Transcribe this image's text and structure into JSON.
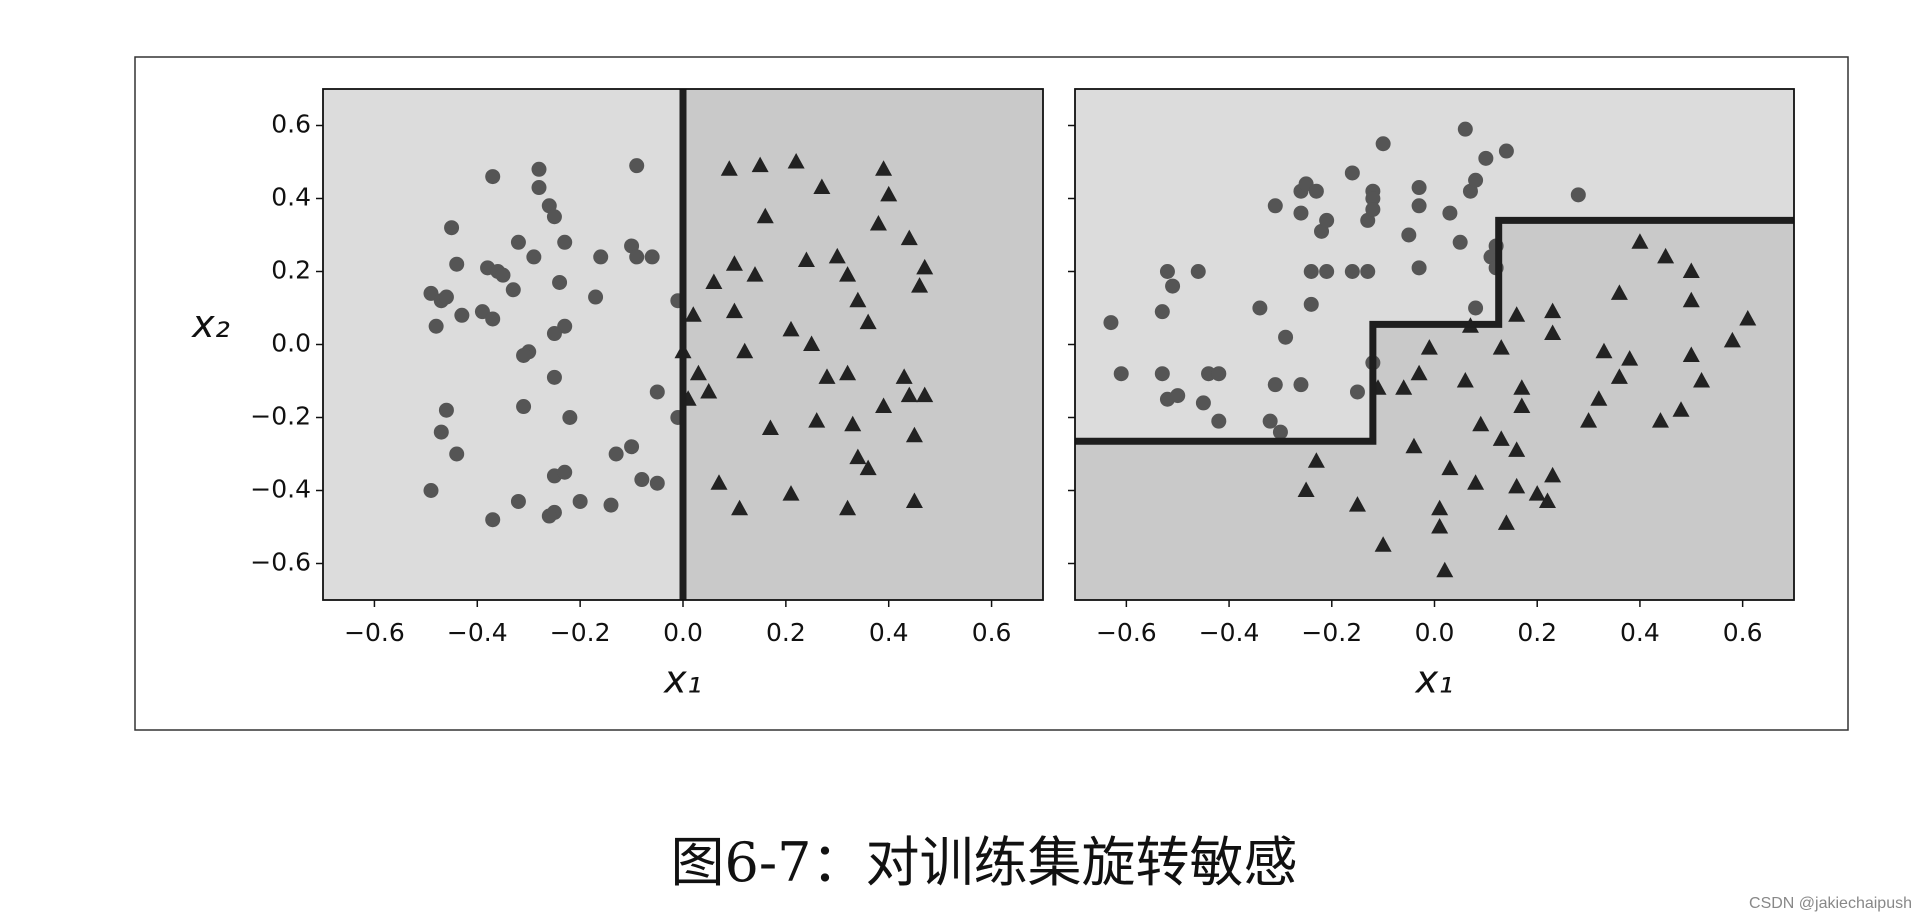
{
  "chart_data": [
    {
      "type": "scatter",
      "xlabel": "x₁",
      "ylabel": "x₂",
      "xlim": [
        -0.7,
        0.7
      ],
      "ylim": [
        -0.7,
        0.7
      ],
      "xticks": [
        {
          "value": -0.6,
          "label": "−0.6"
        },
        {
          "value": -0.4,
          "label": "−0.4"
        },
        {
          "value": -0.2,
          "label": "−0.2"
        },
        {
          "value": 0,
          "label": "0.0"
        },
        0.2,
        0.4,
        0.6
      ],
      "yticks": [
        {
          "value": -0.6,
          "label": "−0.6"
        },
        {
          "value": -0.4,
          "label": "−0.4"
        },
        {
          "value": -0.2,
          "label": "−0.2"
        },
        {
          "value": 0,
          "label": "0.0"
        },
        0.2,
        0.4,
        0.6
      ],
      "ytick_labels": true,
      "region_colors": [
        "#dcdcdc",
        "#c9c9c9"
      ],
      "dark_side": "right",
      "boundary": {
        "color": "#1e1e1e",
        "x": [
          0,
          0
        ],
        "y": [
          -0.7,
          0.7
        ]
      },
      "circles": {
        "marker": "circle",
        "color": "#555555",
        "x": [
          -0.49,
          -0.48,
          -0.47,
          -0.45,
          -0.44,
          -0.43,
          -0.46,
          -0.39,
          -0.38,
          -0.37,
          -0.37,
          -0.36,
          -0.35,
          -0.33,
          -0.32,
          -0.29,
          -0.28,
          -0.28,
          -0.26,
          -0.25,
          -0.24,
          -0.23,
          -0.23,
          -0.25,
          -0.3,
          -0.31,
          -0.25,
          -0.31,
          -0.22,
          -0.17,
          -0.16,
          -0.09,
          -0.1,
          -0.09,
          -0.06,
          -0.01,
          -0.05,
          -0.01,
          -0.46,
          -0.47,
          -0.44,
          -0.49,
          -0.37,
          -0.32,
          -0.25,
          -0.23,
          -0.25,
          -0.26,
          -0.2,
          -0.14,
          -0.13,
          -0.1,
          -0.08,
          -0.05
        ],
        "y": [
          0.14,
          0.05,
          0.12,
          0.32,
          0.22,
          0.08,
          0.13,
          0.09,
          0.21,
          0.46,
          0.07,
          0.2,
          0.19,
          0.15,
          0.28,
          0.24,
          0.43,
          0.48,
          0.38,
          0.35,
          0.17,
          0.28,
          0.05,
          0.03,
          -0.02,
          -0.03,
          -0.09,
          -0.17,
          -0.2,
          0.13,
          0.24,
          0.49,
          0.27,
          0.24,
          0.24,
          0.12,
          -0.13,
          -0.2,
          -0.18,
          -0.24,
          -0.3,
          -0.4,
          -0.48,
          -0.43,
          -0.36,
          -0.35,
          -0.46,
          -0.47,
          -0.43,
          -0.44,
          -0.3,
          -0.28,
          -0.37,
          -0.38
        ]
      },
      "triangles": {
        "marker": "triangle",
        "color": "#222222",
        "x": [
          0.09,
          0.15,
          0.22,
          0.27,
          0.39,
          0.4,
          0.16,
          0.38,
          0.44,
          0.47,
          0.46,
          0.1,
          0.14,
          0.24,
          0.3,
          0.32,
          0.34,
          0.36,
          0.06,
          0.1,
          0.21,
          0.25,
          0.02,
          0.0,
          0.03,
          0.12,
          0.05,
          0.01,
          0.28,
          0.32,
          0.43,
          0.44,
          0.47,
          0.39,
          0.45,
          0.17,
          0.26,
          0.33,
          0.34,
          0.36,
          0.07,
          0.11,
          0.21,
          0.32,
          0.45
        ],
        "y": [
          0.48,
          0.49,
          0.5,
          0.43,
          0.48,
          0.41,
          0.35,
          0.33,
          0.29,
          0.21,
          0.16,
          0.22,
          0.19,
          0.23,
          0.24,
          0.19,
          0.12,
          0.06,
          0.17,
          0.09,
          0.04,
          0.0,
          0.08,
          -0.02,
          -0.08,
          -0.02,
          -0.13,
          -0.15,
          -0.09,
          -0.08,
          -0.09,
          -0.14,
          -0.14,
          -0.17,
          -0.25,
          -0.23,
          -0.21,
          -0.22,
          -0.31,
          -0.34,
          -0.38,
          -0.45,
          -0.41,
          -0.45,
          -0.43
        ]
      }
    },
    {
      "type": "scatter",
      "xlabel": "x₁",
      "xlim": [
        -0.7,
        0.7
      ],
      "ylim": [
        -0.7,
        0.7
      ],
      "xticks": [
        {
          "value": -0.6,
          "label": "−0.6"
        },
        {
          "value": -0.4,
          "label": "−0.4"
        },
        {
          "value": -0.2,
          "label": "−0.2"
        },
        {
          "value": 0,
          "label": "0.0"
        },
        0.2,
        0.4,
        0.6
      ],
      "yticks": [
        -0.6,
        -0.4,
        -0.2,
        0,
        0.2,
        0.4,
        0.6
      ],
      "ytick_labels": false,
      "region_colors": [
        "#dcdcdc",
        "#c9c9c9"
      ],
      "dark_side": "below",
      "boundary": {
        "color": "#1e1e1e",
        "x": [
          -0.7,
          -0.12,
          -0.12,
          0.125,
          0.125,
          0.7
        ],
        "y": [
          -0.265,
          -0.265,
          0.055,
          0.055,
          0.34,
          0.34
        ]
      },
      "circles": {
        "marker": "circle",
        "color": "#555555",
        "x": [
          -0.63,
          -0.61,
          -0.53,
          -0.51,
          -0.53,
          -0.52,
          -0.5,
          -0.52,
          -0.46,
          -0.45,
          -0.44,
          -0.42,
          -0.42,
          -0.34,
          -0.32,
          -0.3,
          -0.31,
          -0.29,
          -0.31,
          -0.26,
          -0.26,
          -0.25,
          -0.23,
          -0.26,
          -0.22,
          -0.21,
          -0.24,
          -0.21,
          -0.24,
          -0.16,
          -0.12,
          -0.12,
          -0.13,
          -0.12,
          -0.16,
          -0.13,
          -0.1,
          -0.03,
          -0.03,
          -0.05,
          -0.03,
          -0.15,
          -0.12,
          0.03,
          0.06,
          0.05,
          0.07,
          0.08,
          0.1,
          0.14,
          0.11,
          0.12,
          0.12,
          0.08,
          0.28
        ],
        "y": [
          0.06,
          -0.08,
          0.09,
          0.16,
          -0.08,
          -0.15,
          -0.14,
          0.2,
          0.2,
          -0.16,
          -0.08,
          -0.08,
          -0.21,
          0.1,
          -0.21,
          -0.24,
          -0.11,
          0.02,
          0.38,
          -0.11,
          0.42,
          0.44,
          0.42,
          0.36,
          0.31,
          0.34,
          0.2,
          0.2,
          0.11,
          0.47,
          0.42,
          0.4,
          0.34,
          0.37,
          0.2,
          0.2,
          0.55,
          0.43,
          0.38,
          0.3,
          0.21,
          -0.13,
          -0.05,
          0.36,
          0.59,
          0.28,
          0.42,
          0.45,
          0.51,
          0.53,
          0.24,
          0.27,
          0.21,
          0.1,
          0.41
        ]
      },
      "triangles": {
        "marker": "triangle",
        "color": "#222222",
        "x": [
          -0.25,
          -0.23,
          -0.15,
          -0.1,
          -0.11,
          -0.06,
          -0.03,
          -0.01,
          -0.04,
          0.01,
          0.01,
          0.02,
          0.03,
          0.08,
          0.07,
          0.06,
          0.09,
          0.13,
          0.13,
          0.14,
          0.16,
          0.16,
          0.17,
          0.17,
          0.16,
          0.2,
          0.22,
          0.23,
          0.23,
          0.23,
          0.3,
          0.32,
          0.33,
          0.36,
          0.36,
          0.38,
          0.4,
          0.45,
          0.44,
          0.48,
          0.5,
          0.5,
          0.5,
          0.52,
          0.58,
          0.61
        ],
        "y": [
          -0.4,
          -0.32,
          -0.44,
          -0.55,
          -0.12,
          -0.12,
          -0.08,
          -0.01,
          -0.28,
          -0.45,
          -0.5,
          -0.62,
          -0.34,
          -0.38,
          0.05,
          -0.1,
          -0.22,
          -0.01,
          -0.26,
          -0.49,
          0.08,
          -0.29,
          -0.12,
          -0.17,
          -0.39,
          -0.41,
          -0.43,
          0.09,
          0.03,
          -0.36,
          -0.21,
          -0.15,
          -0.02,
          0.14,
          -0.09,
          -0.04,
          0.28,
          0.24,
          -0.21,
          -0.18,
          0.2,
          0.12,
          -0.03,
          -0.1,
          0.01,
          0.07
        ]
      }
    }
  ],
  "caption": "图6-7：对训练集旋转敏感",
  "watermark": "CSDN @jakiechaipush"
}
